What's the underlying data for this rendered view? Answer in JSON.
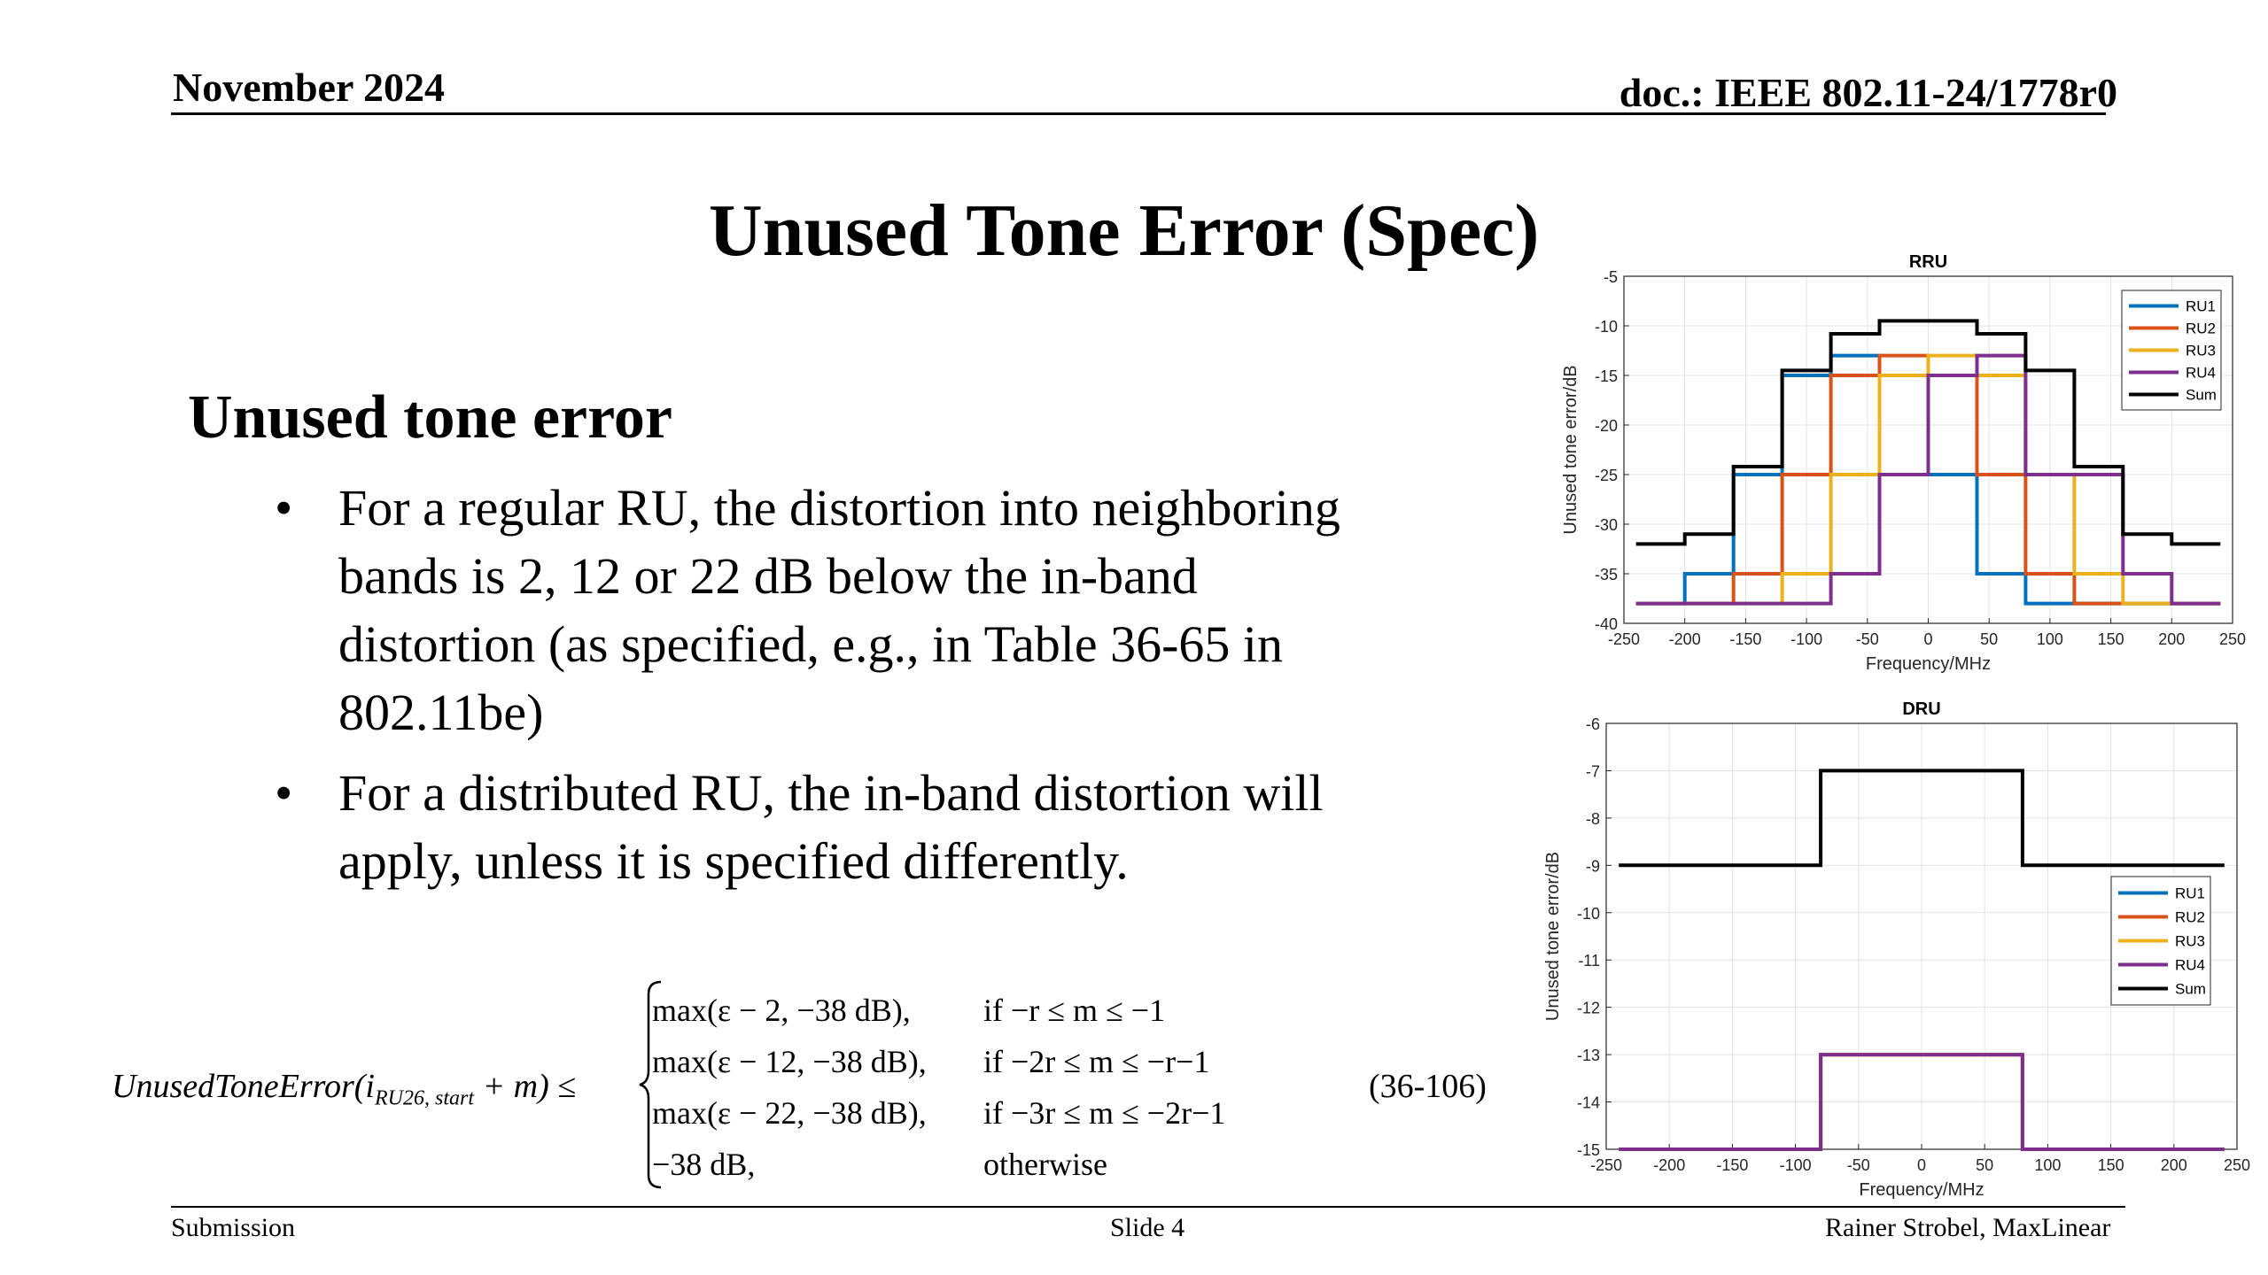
{
  "header": {
    "date": "November 2024",
    "doc": "doc.: IEEE 802.11-24/1778r0"
  },
  "title": "Unused Tone Error (Spec)",
  "section_title": "Unused tone error",
  "bullets": [
    "For a regular RU, the distortion into neighboring bands is 2, 12 or 22 dB below the in-band distortion (as specified, e.g., in Table 36-65 in 802.11be)",
    "For a distributed RU, the in-band distortion will apply, unless it is specified differently."
  ],
  "formula": {
    "lhs_name": "UnusedToneError(i",
    "lhs_sub": "RU26, start",
    "lhs_tail": " + m) ≤",
    "cases": [
      {
        "value": "max(ε − 2, −38 dB),",
        "cond": "if  −r ≤ m ≤ −1"
      },
      {
        "value": "max(ε − 12, −38 dB),",
        "cond": "if  −2r ≤ m ≤ −r−1"
      },
      {
        "value": "max(ε − 22, −38 dB),",
        "cond": "if  −3r ≤ m ≤ −2r−1"
      },
      {
        "value": "−38 dB,",
        "cond": "otherwise"
      }
    ],
    "eq_number": "(36-106)"
  },
  "footer": {
    "left": "Submission",
    "center": "Slide 4",
    "right": "Rainer Strobel, MaxLinear"
  },
  "chart_data": [
    {
      "type": "line",
      "title": "RRU",
      "xlabel": "Frequency/MHz",
      "ylabel": "Unused tone error/dB",
      "xlim": [
        -250,
        250
      ],
      "ylim": [
        -40,
        -5
      ],
      "xticks": [
        -250,
        -200,
        -150,
        -100,
        -50,
        0,
        50,
        100,
        150,
        200,
        250
      ],
      "yticks": [
        -40,
        -35,
        -30,
        -25,
        -20,
        -15,
        -10,
        -5
      ],
      "grid": true,
      "legend_position": "top-right",
      "series": [
        {
          "name": "RU1",
          "color": "#0072BD",
          "points": [
            [
              -240,
              -38
            ],
            [
              -200,
              -38
            ],
            [
              -200,
              -35
            ],
            [
              -160,
              -35
            ],
            [
              -160,
              -25
            ],
            [
              -120,
              -25
            ],
            [
              -120,
              -15
            ],
            [
              -80,
              -15
            ],
            [
              -80,
              -13
            ],
            [
              -40,
              -13
            ],
            [
              -40,
              -25
            ],
            [
              40,
              -25
            ],
            [
              40,
              -35
            ],
            [
              80,
              -35
            ],
            [
              80,
              -38
            ],
            [
              240,
              -38
            ]
          ]
        },
        {
          "name": "RU2",
          "color": "#D95319",
          "points": [
            [
              -240,
              -38
            ],
            [
              -160,
              -38
            ],
            [
              -160,
              -35
            ],
            [
              -120,
              -35
            ],
            [
              -120,
              -25
            ],
            [
              -80,
              -25
            ],
            [
              -80,
              -15
            ],
            [
              -40,
              -15
            ],
            [
              -40,
              -13
            ],
            [
              0,
              -13
            ],
            [
              0,
              -15
            ],
            [
              40,
              -15
            ],
            [
              40,
              -25
            ],
            [
              80,
              -25
            ],
            [
              80,
              -35
            ],
            [
              120,
              -35
            ],
            [
              120,
              -38
            ],
            [
              240,
              -38
            ]
          ]
        },
        {
          "name": "RU3",
          "color": "#EDB120",
          "points": [
            [
              -240,
              -38
            ],
            [
              -120,
              -38
            ],
            [
              -120,
              -35
            ],
            [
              -80,
              -35
            ],
            [
              -80,
              -25
            ],
            [
              -40,
              -25
            ],
            [
              -40,
              -15
            ],
            [
              0,
              -15
            ],
            [
              0,
              -13
            ],
            [
              40,
              -13
            ],
            [
              40,
              -15
            ],
            [
              80,
              -15
            ],
            [
              80,
              -25
            ],
            [
              120,
              -25
            ],
            [
              120,
              -35
            ],
            [
              160,
              -35
            ],
            [
              160,
              -38
            ],
            [
              240,
              -38
            ]
          ]
        },
        {
          "name": "RU4",
          "color": "#7E2F8E",
          "points": [
            [
              -240,
              -38
            ],
            [
              -80,
              -38
            ],
            [
              -80,
              -35
            ],
            [
              -40,
              -35
            ],
            [
              -40,
              -25
            ],
            [
              0,
              -25
            ],
            [
              0,
              -15
            ],
            [
              40,
              -15
            ],
            [
              40,
              -13
            ],
            [
              80,
              -13
            ],
            [
              80,
              -25
            ],
            [
              160,
              -25
            ],
            [
              160,
              -35
            ],
            [
              200,
              -35
            ],
            [
              200,
              -38
            ],
            [
              240,
              -38
            ]
          ]
        },
        {
          "name": "Sum",
          "color": "#000000",
          "points": [
            [
              -240,
              -32
            ],
            [
              -200,
              -32
            ],
            [
              -200,
              -31
            ],
            [
              -160,
              -31
            ],
            [
              -160,
              -24.2
            ],
            [
              -120,
              -24.2
            ],
            [
              -120,
              -14.5
            ],
            [
              -80,
              -14.5
            ],
            [
              -80,
              -10.8
            ],
            [
              -40,
              -10.8
            ],
            [
              -40,
              -9.5
            ],
            [
              0,
              -9.5
            ],
            [
              40,
              -9.5
            ],
            [
              40,
              -10.8
            ],
            [
              80,
              -10.8
            ],
            [
              80,
              -14.5
            ],
            [
              120,
              -14.5
            ],
            [
              120,
              -24.2
            ],
            [
              160,
              -24.2
            ],
            [
              160,
              -31
            ],
            [
              200,
              -31
            ],
            [
              200,
              -32
            ],
            [
              240,
              -32
            ]
          ]
        }
      ]
    },
    {
      "type": "line",
      "title": "DRU",
      "xlabel": "Frequency/MHz",
      "ylabel": "Unused tone error/dB",
      "xlim": [
        -250,
        250
      ],
      "ylim": [
        -15,
        -6
      ],
      "xticks": [
        -250,
        -200,
        -150,
        -100,
        -50,
        0,
        50,
        100,
        150,
        200,
        250
      ],
      "yticks": [
        -15,
        -14,
        -13,
        -12,
        -11,
        -10,
        -9,
        -8,
        -7,
        -6
      ],
      "grid": true,
      "legend_position": "center-right",
      "series": [
        {
          "name": "RU1",
          "color": "#0072BD",
          "points": [
            [
              -240,
              -15
            ],
            [
              -80,
              -15
            ],
            [
              -80,
              -13
            ],
            [
              80,
              -13
            ],
            [
              80,
              -15
            ],
            [
              240,
              -15
            ]
          ]
        },
        {
          "name": "RU2",
          "color": "#D95319",
          "points": [
            [
              -240,
              -15
            ],
            [
              -80,
              -15
            ],
            [
              -80,
              -13
            ],
            [
              80,
              -13
            ],
            [
              80,
              -15
            ],
            [
              240,
              -15
            ]
          ]
        },
        {
          "name": "RU3",
          "color": "#EDB120",
          "points": [
            [
              -240,
              -15
            ],
            [
              -80,
              -15
            ],
            [
              -80,
              -13
            ],
            [
              80,
              -13
            ],
            [
              80,
              -15
            ],
            [
              240,
              -15
            ]
          ]
        },
        {
          "name": "RU4",
          "color": "#7E2F8E",
          "points": [
            [
              -240,
              -15
            ],
            [
              -80,
              -15
            ],
            [
              -80,
              -13
            ],
            [
              80,
              -13
            ],
            [
              80,
              -15
            ],
            [
              240,
              -15
            ]
          ]
        },
        {
          "name": "Sum",
          "color": "#000000",
          "points": [
            [
              -240,
              -9
            ],
            [
              -80,
              -9
            ],
            [
              -80,
              -7
            ],
            [
              80,
              -7
            ],
            [
              80,
              -9
            ],
            [
              240,
              -9
            ]
          ]
        }
      ]
    }
  ]
}
